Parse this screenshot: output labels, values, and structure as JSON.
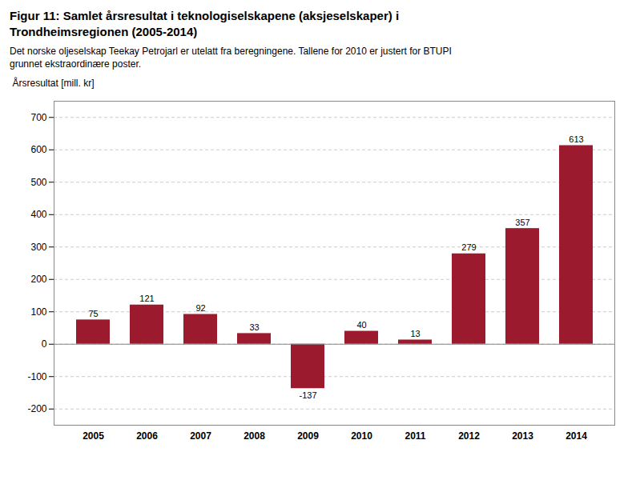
{
  "chart_data": {
    "type": "bar",
    "title": "Figur 11:  Samlet årsresultat i teknologiselskapene (aksjeselskaper) i\nTrondheimsregionen (2005-2014)",
    "subtitle": "Det norske oljeselskap Teekay Petrojarl er utelatt fra beregningene. Tallene for 2010 er justert for BTUPI\ngrunnet ekstraordinære poster.",
    "ylabel": "Årsresultat [mill. kr]",
    "categories": [
      "2005",
      "2006",
      "2007",
      "2008",
      "2009",
      "2010",
      "2011",
      "2012",
      "2013",
      "2014"
    ],
    "values": [
      75,
      121,
      92,
      33,
      -137,
      40,
      13,
      279,
      357,
      613
    ],
    "color": "#9B1A2E",
    "ylim": [
      -250,
      750
    ],
    "yticks": [
      -200,
      -100,
      0,
      100,
      200,
      300,
      400,
      500,
      600,
      700
    ],
    "grid": true,
    "data_labels": true
  }
}
